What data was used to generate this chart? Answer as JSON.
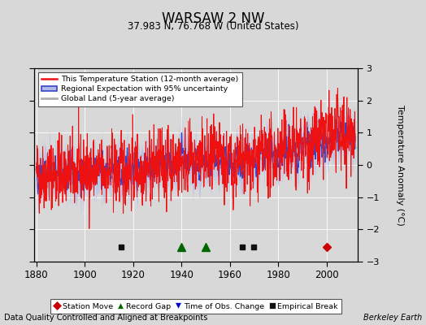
{
  "title": "WARSAW 2 NW",
  "subtitle": "37.983 N, 76.768 W (United States)",
  "ylabel": "Temperature Anomaly (°C)",
  "xlabel_bottom": "Data Quality Controlled and Aligned at Breakpoints",
  "xlabel_right": "Berkeley Earth",
  "year_start": 1880,
  "year_end": 2011,
  "ylim": [
    -3,
    3
  ],
  "yticks": [
    -3,
    -2,
    -1,
    0,
    1,
    2,
    3
  ],
  "xticks": [
    1880,
    1900,
    1920,
    1940,
    1960,
    1980,
    2000
  ],
  "bg_color": "#d8d8d8",
  "plot_bg_color": "#d8d8d8",
  "station_moves": [
    2000
  ],
  "record_gaps": [
    1940,
    1950
  ],
  "obs_changes": [],
  "empirical_breaks": [
    1915,
    1965,
    1970
  ],
  "seed": 42
}
